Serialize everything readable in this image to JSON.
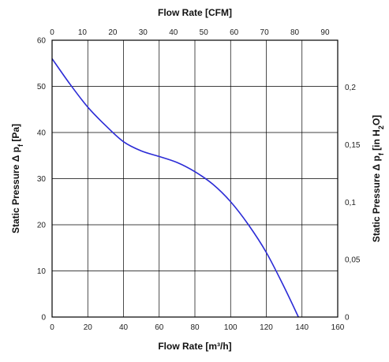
{
  "chart_data": {
    "type": "line",
    "xlabel": "Flow Rate [m³/h]",
    "x2label": "Flow Rate [CFM]",
    "ylabel": "Static Pressure Δ p",
    "ylabel_sub": "f",
    "ylabel_unit": " [Pa]",
    "y2label": "Static Pressure Δ p",
    "y2label_sub": "f",
    "y2label_unit_pre": " [in H",
    "y2label_unit_sub": "2",
    "y2label_unit_post": "O]",
    "xlim": [
      0,
      160
    ],
    "ylim": [
      0,
      60
    ],
    "x2lim": [
      0,
      94.17
    ],
    "y2lim": [
      0,
      0.2409
    ],
    "grid": true,
    "x_ticks": [
      0,
      20,
      40,
      60,
      80,
      100,
      120,
      140,
      160
    ],
    "y_ticks": [
      0,
      10,
      20,
      30,
      40,
      50,
      60
    ],
    "x2_ticks": [
      0,
      10,
      20,
      30,
      40,
      50,
      60,
      70,
      80,
      90
    ],
    "y2_ticks": [
      {
        "value": 0,
        "label": "0"
      },
      {
        "value": 0.05,
        "label": "0,05"
      },
      {
        "value": 0.1,
        "label": "0,1"
      },
      {
        "value": 0.15,
        "label": "0,15"
      },
      {
        "value": 0.2,
        "label": "0,2"
      }
    ],
    "series": [
      {
        "color": "#2b2bd6",
        "x": [
          0,
          10,
          20,
          30,
          40,
          50,
          60,
          70,
          80,
          90,
          100,
          110,
          120,
          130,
          138
        ],
        "y": [
          56,
          50.5,
          45.5,
          41.5,
          38,
          36,
          34.8,
          33.5,
          31.5,
          28.8,
          25,
          20,
          14,
          6.5,
          0
        ]
      }
    ]
  }
}
